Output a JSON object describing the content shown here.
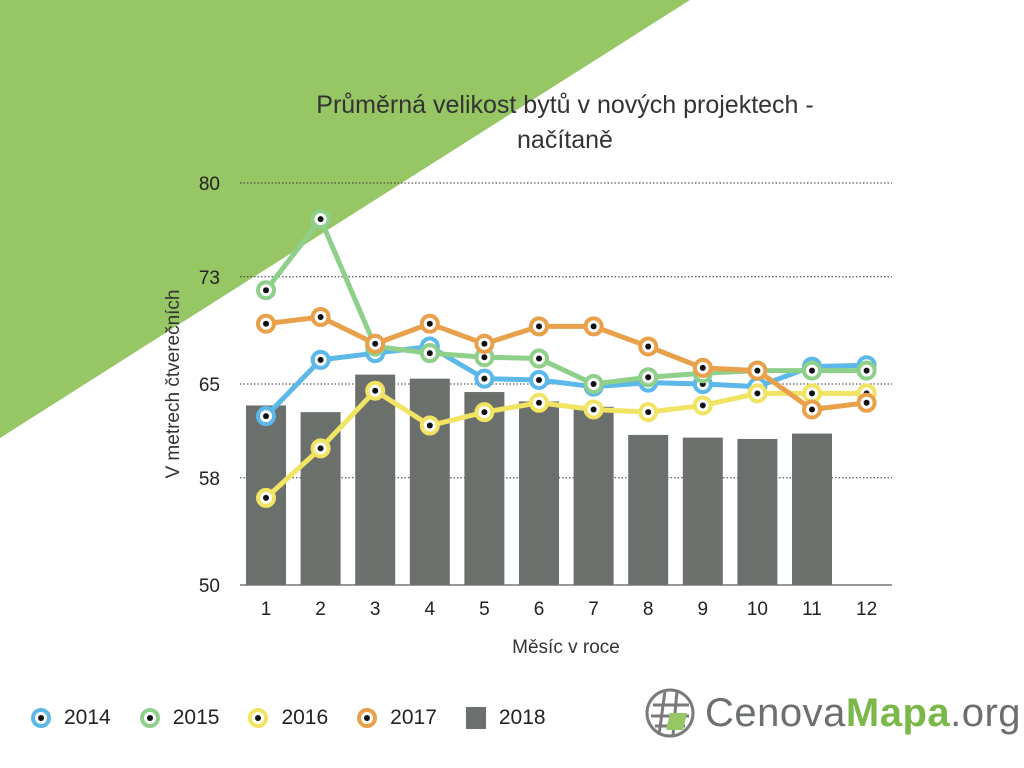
{
  "title_line1": "Průměrná velikost bytů v nových projektech -",
  "title_line2": "načítaně",
  "logo": {
    "part1": "Cenova",
    "part2": "Mapa",
    "part3": ".org",
    "icon": "globe-grid-icon"
  },
  "colors": {
    "background_triangle": "#97c664",
    "bar": "#6c706d",
    "grid": "#333333"
  },
  "chart_data": {
    "type": "line",
    "xlabel": "Měsíc v roce",
    "ylabel": "V metrech čtverečních",
    "ylim": [
      50,
      80
    ],
    "yticks": [
      80,
      73,
      65,
      58,
      50
    ],
    "x": [
      1,
      2,
      3,
      4,
      5,
      6,
      7,
      8,
      9,
      10,
      11,
      12
    ],
    "grid": "horizontal dotted",
    "legend_position": "bottom-left",
    "bars": {
      "name": "2018",
      "color": "#6c706d",
      "values": [
        63.4,
        62.9,
        65.7,
        65.4,
        64.4,
        63.7,
        63.3,
        61.2,
        61.0,
        60.9,
        61.3,
        null
      ]
    },
    "series": [
      {
        "name": "2014",
        "color": "#5bb8e8",
        "values": [
          62.6,
          66.8,
          67.3,
          67.8,
          65.4,
          65.3,
          64.8,
          65.1,
          65.0,
          64.8,
          66.3,
          66.4
        ]
      },
      {
        "name": "2015",
        "color": "#8ed08a",
        "values": [
          72.0,
          77.3,
          67.8,
          67.3,
          67.0,
          66.9,
          65.0,
          65.5,
          65.8,
          66.0,
          66.0,
          66.0
        ]
      },
      {
        "name": "2016",
        "color": "#f1e463",
        "values": [
          56.5,
          60.2,
          64.5,
          61.9,
          62.9,
          63.6,
          63.1,
          62.9,
          63.4,
          64.3,
          64.3,
          64.3
        ]
      },
      {
        "name": "2017",
        "color": "#e8a04a",
        "values": [
          69.5,
          70.0,
          68.0,
          69.5,
          68.0,
          69.3,
          69.3,
          67.8,
          66.2,
          66.0,
          63.1,
          63.6
        ]
      }
    ]
  }
}
